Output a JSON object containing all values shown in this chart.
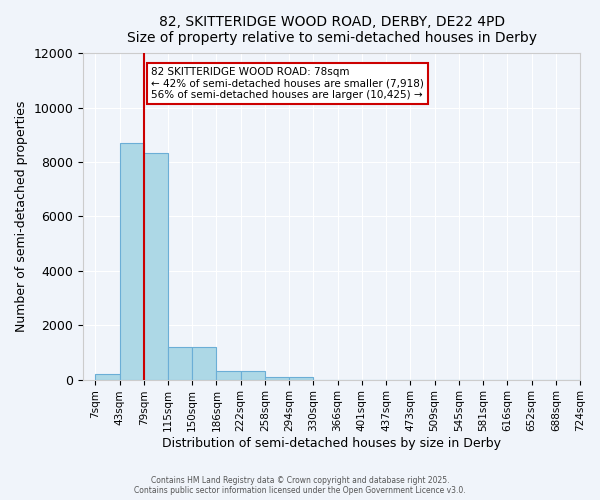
{
  "title_line1": "82, SKITTERIDGE WOOD ROAD, DERBY, DE22 4PD",
  "title_line2": "Size of property relative to semi-detached houses in Derby",
  "xlabel": "Distribution of semi-detached houses by size in Derby",
  "ylabel": "Number of semi-detached properties",
  "bins": [
    "7sqm",
    "43sqm",
    "79sqm",
    "115sqm",
    "150sqm",
    "186sqm",
    "222sqm",
    "258sqm",
    "294sqm",
    "330sqm",
    "366sqm",
    "401sqm",
    "437sqm",
    "473sqm",
    "509sqm",
    "545sqm",
    "581sqm",
    "616sqm",
    "652sqm",
    "688sqm",
    "724sqm"
  ],
  "values": [
    200,
    8700,
    8350,
    1200,
    1200,
    320,
    320,
    100,
    100,
    0,
    0,
    0,
    0,
    0,
    0,
    0,
    0,
    0,
    0,
    0
  ],
  "bar_color": "#add8e6",
  "bar_edge_color": "#6baed6",
  "property_value": 78,
  "property_label": "82 SKITTERIDGE WOOD ROAD: 78sqm",
  "pct_smaller": 42,
  "count_smaller": 7918,
  "pct_larger": 56,
  "count_larger": 10425,
  "vline_bin_index": 2,
  "vline_color": "#cc0000",
  "ylim": [
    0,
    12000
  ],
  "yticks": [
    0,
    2000,
    4000,
    6000,
    8000,
    10000,
    12000
  ],
  "annotation_box_color": "#cc0000",
  "footer_line1": "Contains HM Land Registry data © Crown copyright and database right 2025.",
  "footer_line2": "Contains public sector information licensed under the Open Government Licence v3.0.",
  "bg_color": "#f0f4fa",
  "plot_bg_color": "#f0f4fa"
}
